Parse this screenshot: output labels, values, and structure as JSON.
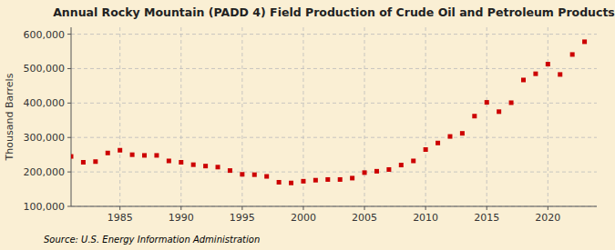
{
  "chart_data": {
    "type": "scatter",
    "title": "Annual Rocky Mountain (PADD 4) Field Production of Crude Oil and Petroleum Products",
    "y_label": "Thousand Barrels",
    "source": "Source: U.S. Energy Information Administration",
    "background_color": "#faefd4",
    "color": "#cc0000",
    "marker": "square",
    "grid": true,
    "x": [
      1981,
      1982,
      1983,
      1984,
      1985,
      1986,
      1987,
      1988,
      1989,
      1990,
      1991,
      1992,
      1993,
      1994,
      1995,
      1996,
      1997,
      1998,
      1999,
      2000,
      2001,
      2002,
      2003,
      2004,
      2005,
      2006,
      2007,
      2008,
      2009,
      2010,
      2011,
      2012,
      2013,
      2014,
      2015,
      2016,
      2017,
      2018,
      2019,
      2020,
      2021,
      2022,
      2023
    ],
    "values": [
      245000,
      228000,
      230000,
      255000,
      263000,
      250000,
      248000,
      248000,
      232000,
      228000,
      221000,
      217000,
      214000,
      204000,
      193000,
      192000,
      187000,
      170000,
      168000,
      173000,
      176000,
      178000,
      178000,
      182000,
      198000,
      202000,
      207000,
      220000,
      232000,
      265000,
      284000,
      303000,
      312000,
      362000,
      402000,
      375000,
      401000,
      467000,
      485000,
      513000,
      483000,
      541000,
      578000
    ],
    "xlim": [
      1981,
      2024
    ],
    "ylim": [
      100000,
      620000
    ],
    "xticks": [
      1985,
      1990,
      1995,
      2000,
      2005,
      2010,
      2015,
      2020
    ],
    "yticks": [
      {
        "value": 100000,
        "label": "100,000"
      },
      {
        "value": 200000,
        "label": "200,000"
      },
      {
        "value": 300000,
        "label": "300,000"
      },
      {
        "value": 400000,
        "label": "400,000"
      },
      {
        "value": 500000,
        "label": "500,000"
      },
      {
        "value": 600000,
        "label": "600,000"
      }
    ]
  }
}
